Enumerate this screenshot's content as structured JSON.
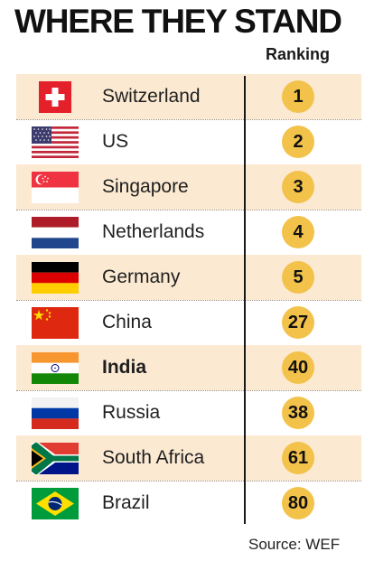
{
  "title": "WHERE THEY STAND",
  "column_header": "Ranking",
  "source": "Source: WEF",
  "rows": [
    {
      "country": "Switzerland",
      "rank": "1",
      "flag": "switzerland-flag-icon"
    },
    {
      "country": "US",
      "rank": "2",
      "flag": "us-flag-icon"
    },
    {
      "country": "Singapore",
      "rank": "3",
      "flag": "singapore-flag-icon"
    },
    {
      "country": "Netherlands",
      "rank": "4",
      "flag": "netherlands-flag-icon"
    },
    {
      "country": "Germany",
      "rank": "5",
      "flag": "germany-flag-icon"
    },
    {
      "country": "China",
      "rank": "27",
      "flag": "china-flag-icon"
    },
    {
      "country": "India",
      "rank": "40",
      "flag": "india-flag-icon"
    },
    {
      "country": "Russia",
      "rank": "38",
      "flag": "russia-flag-icon"
    },
    {
      "country": "South Africa",
      "rank": "61",
      "flag": "south-africa-flag-icon"
    },
    {
      "country": "Brazil",
      "rank": "80",
      "flag": "brazil-flag-icon"
    }
  ],
  "colors": {
    "row_shade": "#fbe9d2",
    "badge": "#f3c24a",
    "highlight_country": "India"
  }
}
